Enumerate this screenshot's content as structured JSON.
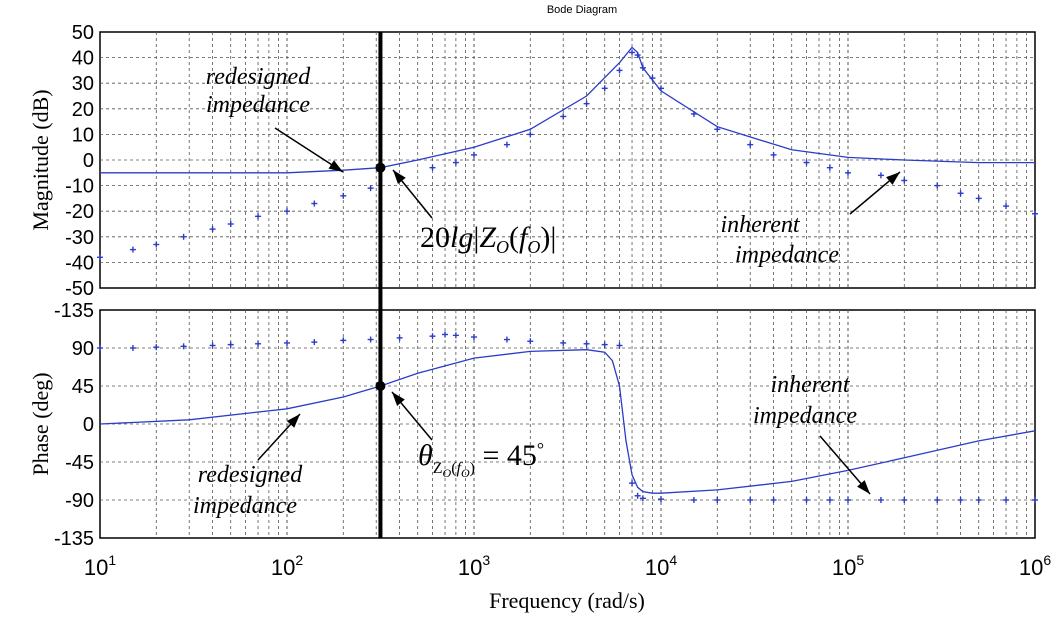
{
  "chart_data": {
    "type": "line",
    "title": "Bode Diagram",
    "xlabel": "Frequency (rad/s)",
    "x_scale": "log",
    "xlim": [
      10,
      1000000
    ],
    "x_ticks": [
      10,
      100,
      1000,
      10000,
      100000,
      1000000
    ],
    "panels": [
      {
        "name": "magnitude",
        "ylabel": "Magnitude (dB)",
        "ylim": [
          -50,
          50
        ],
        "y_ticks": [
          50,
          40,
          30,
          20,
          10,
          0,
          -10,
          -20,
          -30,
          -40,
          -50
        ],
        "series": [
          {
            "name": "redesigned impedance",
            "style": "solid",
            "x": [
              10,
              50,
              100,
              200,
              316,
              500,
              1000,
              2000,
              4000,
              6000,
              7000,
              7500,
              8000,
              10000,
              20000,
              50000,
              100000,
              200000,
              500000,
              1000000
            ],
            "y": [
              -5,
              -5,
              -5,
              -4,
              -3,
              0,
              5,
              12,
              25,
              38,
              44,
              42,
              36,
              27,
              13,
              4,
              1,
              0,
              -1,
              -1
            ]
          },
          {
            "name": "inherent impedance",
            "style": "markers",
            "x": [
              10,
              15,
              20,
              28,
              40,
              50,
              70,
              100,
              140,
              200,
              280,
              400,
              600,
              800,
              1000,
              1500,
              2000,
              3000,
              4000,
              5000,
              6000,
              7000,
              7500,
              8000,
              9000,
              10000,
              15000,
              20000,
              30000,
              40000,
              60000,
              80000,
              100000,
              150000,
              200000,
              300000,
              400000,
              500000,
              700000,
              1000000
            ],
            "y": [
              -38,
              -35,
              -33,
              -30,
              -27,
              -25,
              -22,
              -20,
              -17,
              -14,
              -11,
              -7,
              -3,
              -1,
              2,
              6,
              10,
              17,
              22,
              28,
              35,
              42,
              41,
              36,
              32,
              28,
              18,
              12,
              6,
              2,
              -1,
              -3,
              -5,
              -6,
              -8,
              -10,
              -13,
              -15,
              -18,
              -21
            ]
          }
        ],
        "annotations": [
          {
            "lines": [
              "redesigned",
              "impedance"
            ]
          },
          {
            "lines": [
              "inherent",
              "impedance"
            ]
          }
        ],
        "marker_label": "20lg|Z_O(f_O)|"
      },
      {
        "name": "phase",
        "ylabel": "Phase (deg)",
        "ylim": [
          -135,
          135
        ],
        "y_ticks": [
          -135,
          90,
          45,
          0,
          -45,
          -90,
          -135
        ],
        "series": [
          {
            "name": "redesigned impedance",
            "style": "solid",
            "x": [
              10,
              30,
              100,
              200,
              316,
              500,
              1000,
              2000,
              4000,
              5000,
              5500,
              6000,
              6500,
              7000,
              7500,
              8000,
              9000,
              10000,
              20000,
              50000,
              100000,
              200000,
              500000,
              1000000
            ],
            "y": [
              0,
              5,
              18,
              32,
              45,
              60,
              78,
              86,
              88,
              85,
              75,
              45,
              -20,
              -60,
              -75,
              -80,
              -82,
              -82,
              -78,
              -68,
              -55,
              -40,
              -20,
              -8
            ]
          },
          {
            "name": "inherent impedance",
            "style": "markers",
            "x": [
              10,
              15,
              20,
              28,
              40,
              50,
              70,
              100,
              140,
              200,
              280,
              400,
              600,
              700,
              800,
              1000,
              1500,
              2000,
              3000,
              4000,
              5000,
              6000,
              7000,
              7500,
              8000,
              10000,
              15000,
              20000,
              30000,
              40000,
              60000,
              80000,
              100000,
              150000,
              200000,
              300000,
              400000,
              500000,
              700000,
              1000000
            ],
            "y": [
              90,
              90,
              91,
              92,
              93,
              94,
              95,
              96,
              97,
              99,
              100,
              102,
              104,
              106,
              105,
              103,
              100,
              98,
              96,
              95,
              94,
              93,
              -70,
              -85,
              -88,
              -89,
              -90,
              -90,
              -90,
              -90,
              -90,
              -90,
              -90,
              -90,
              -90,
              -90,
              -90,
              -90,
              -90,
              -90
            ]
          }
        ],
        "annotations": [
          {
            "lines": [
              "redesigned",
              "impedance"
            ]
          },
          {
            "lines": [
              "inherent",
              "impedance"
            ]
          }
        ],
        "marker_label": "θZO(fO) = 45°"
      }
    ],
    "marker": {
      "x": 316
    }
  },
  "colors": {
    "series": "#2b3cc8",
    "grid": "#555555",
    "frame": "#000000",
    "marker_line": "#000000"
  }
}
